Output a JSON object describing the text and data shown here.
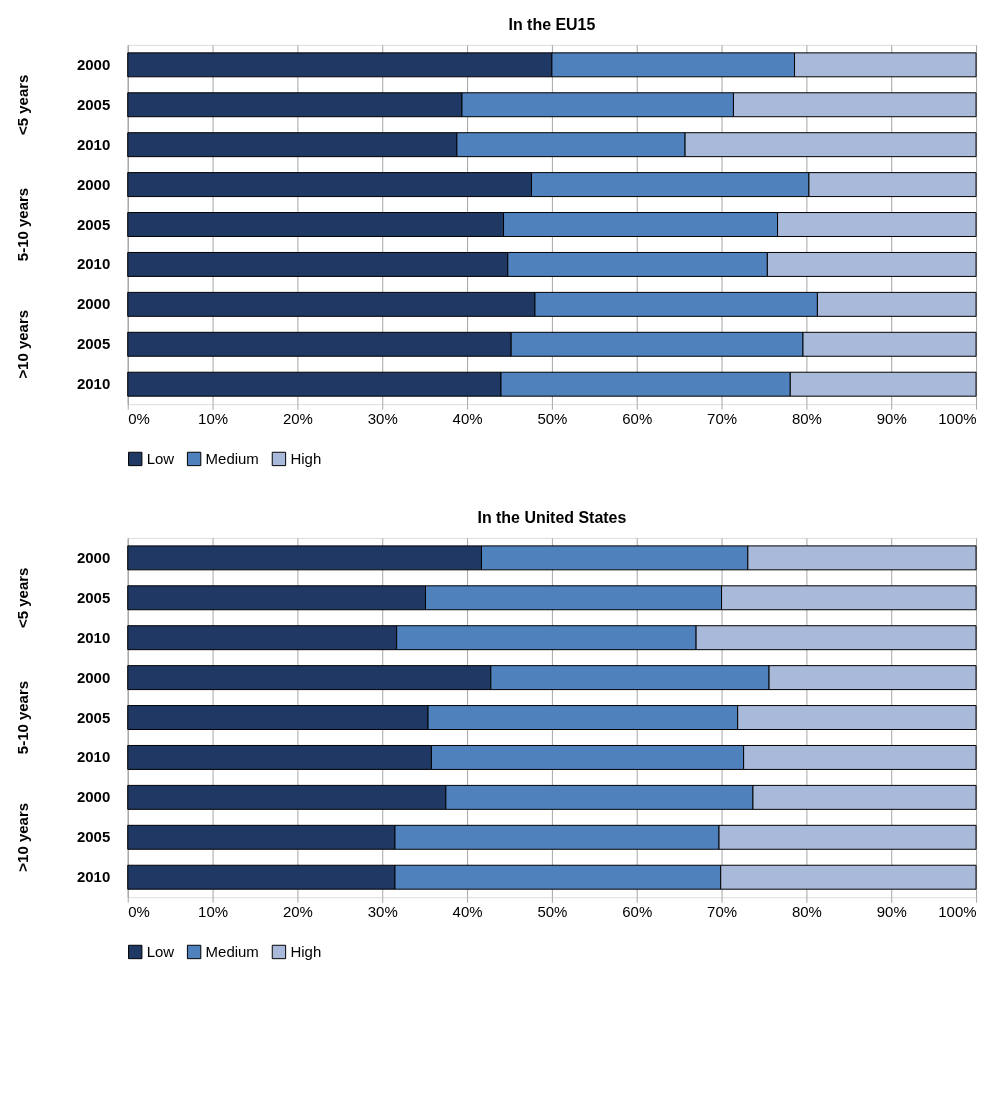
{
  "chart_data": [
    {
      "type": "bar",
      "orientation": "horizontal",
      "stacked": true,
      "title": "In the EU15",
      "categories": [
        "2000",
        "2005",
        "2010",
        "2000",
        "2005",
        "2010",
        "2000",
        "2005",
        "2010"
      ],
      "annotations": [
        "<5 years",
        "5-10 years",
        ">10 years"
      ],
      "series": [
        {
          "name": "Low",
          "color": "#1f3864",
          "values": [
            50.0,
            39.4,
            38.8,
            47.6,
            44.3,
            44.8,
            48.0,
            45.2,
            44.0
          ]
        },
        {
          "name": "Medium",
          "color": "#4f81bd",
          "values": [
            28.6,
            32.0,
            26.9,
            32.7,
            32.3,
            30.6,
            33.3,
            34.4,
            34.1
          ]
        },
        {
          "name": "High",
          "color": "#a9b9d9",
          "values": [
            21.4,
            28.6,
            34.3,
            19.7,
            23.4,
            24.6,
            18.7,
            20.4,
            21.9
          ]
        }
      ],
      "xlim": [
        0,
        100
      ],
      "xticks": [
        {
          "value": 0,
          "label": "0%"
        },
        {
          "value": 10,
          "label": "10%"
        },
        {
          "value": 20,
          "label": "20%"
        },
        {
          "value": 30,
          "label": "30%"
        },
        {
          "value": 40,
          "label": "40%"
        },
        {
          "value": 50,
          "label": "50%"
        },
        {
          "value": 60,
          "label": "60%"
        },
        {
          "value": 70,
          "label": "70%"
        },
        {
          "value": 80,
          "label": "80%"
        },
        {
          "value": 90,
          "label": "90%"
        },
        {
          "value": 100,
          "label": "100%"
        }
      ],
      "grid": "x",
      "legend": "bottom"
    },
    {
      "type": "bar",
      "orientation": "horizontal",
      "stacked": true,
      "title": "In the United States",
      "categories": [
        "2000",
        "2005",
        "2010",
        "2000",
        "2005",
        "2010",
        "2000",
        "2005",
        "2010"
      ],
      "annotations": [
        "<5 years",
        "5-10 years",
        ">10 years"
      ],
      "series": [
        {
          "name": "Low",
          "color": "#1f3864",
          "values": [
            41.7,
            35.1,
            31.7,
            42.8,
            35.4,
            35.8,
            37.5,
            31.5,
            31.5
          ]
        },
        {
          "name": "Medium",
          "color": "#4f81bd",
          "values": [
            31.4,
            34.9,
            35.3,
            32.8,
            36.5,
            36.8,
            36.2,
            38.2,
            38.4
          ]
        },
        {
          "name": "High",
          "color": "#a9b9d9",
          "values": [
            26.9,
            30.0,
            33.0,
            24.4,
            28.1,
            27.4,
            26.3,
            30.3,
            30.1
          ]
        }
      ],
      "xlim": [
        0,
        100
      ],
      "xticks": [
        {
          "value": 0,
          "label": "0%"
        },
        {
          "value": 10,
          "label": "10%"
        },
        {
          "value": 20,
          "label": "20%"
        },
        {
          "value": 30,
          "label": "30%"
        },
        {
          "value": 40,
          "label": "40%"
        },
        {
          "value": 50,
          "label": "50%"
        },
        {
          "value": 60,
          "label": "60%"
        },
        {
          "value": 70,
          "label": "70%"
        },
        {
          "value": 80,
          "label": "80%"
        },
        {
          "value": 90,
          "label": "90%"
        },
        {
          "value": 100,
          "label": "100%"
        }
      ],
      "grid": "x",
      "legend": "bottom"
    }
  ]
}
